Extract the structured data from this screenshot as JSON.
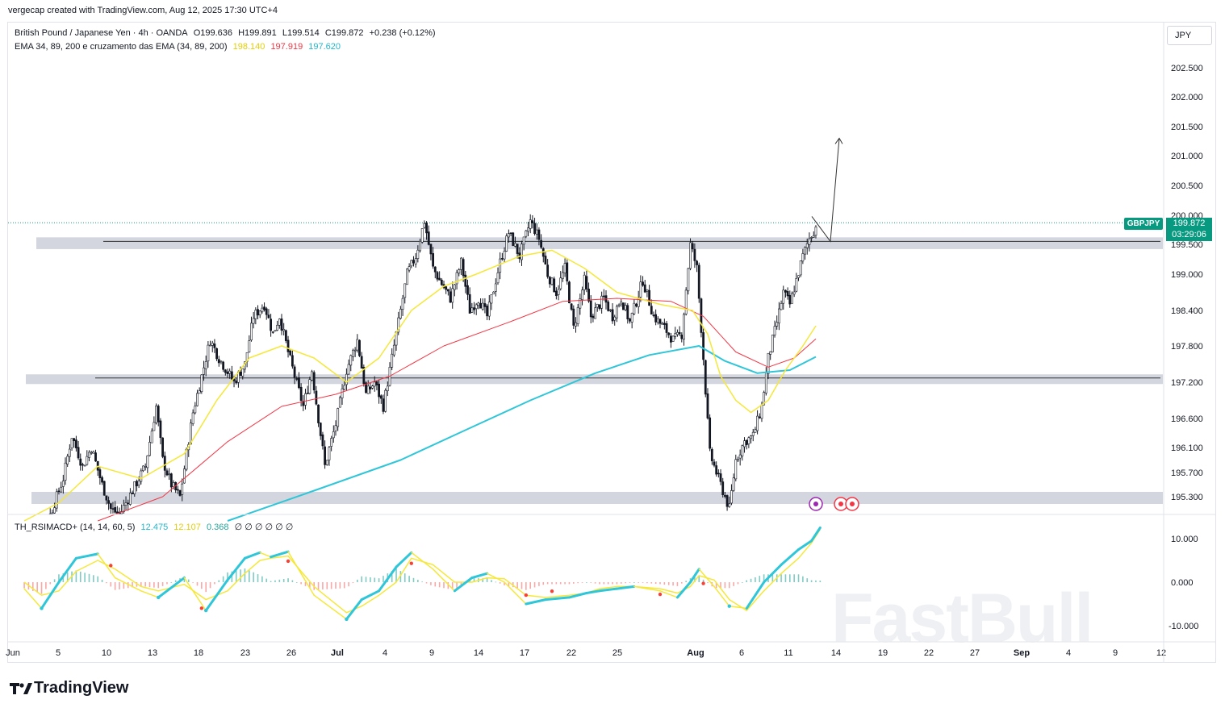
{
  "header_note": "vergecap created with TradingView.com, Aug 12, 2025 17:30 UTC+4",
  "legend": {
    "symbol": "British Pound / Japanese Yen · 4h · OANDA",
    "o": "O199.636",
    "h": "H199.891",
    "l": "L199.514",
    "c": "C199.872",
    "chg": "+0.238 (+0.12%)",
    "ema_label": "EMA 34, 89, 200 e cruzamento das EMA (34, 89, 200)",
    "ema_values": [
      {
        "value": "198.140",
        "color": "#f5e83a"
      },
      {
        "value": "197.919",
        "color": "#f23645"
      },
      {
        "value": "197.620",
        "color": "#2ec6d8"
      }
    ]
  },
  "indicator_legend": {
    "label": "TH_RSIMACD+ (14, 14, 60, 5)",
    "values": [
      {
        "value": "12.475",
        "color": "#2ec6d8"
      },
      {
        "value": "12.107",
        "color": "#f5e83a"
      },
      {
        "value": "0.368",
        "color": "#26a69a"
      }
    ],
    "extras": "∅ ∅ ∅ ∅ ∅ ∅"
  },
  "currency": "JPY",
  "last_price": {
    "symbol": "GBPJPY",
    "price": "199.872",
    "countdown": "03:29:06"
  },
  "watermark": "FastBull",
  "brand": "TradingView",
  "chart_data": {
    "type": "candlestick",
    "price_axis": {
      "ticks": [
        202.5,
        202.0,
        201.5,
        201.0,
        200.5,
        200.0,
        199.5,
        199.0,
        198.4,
        197.8,
        197.2,
        196.6,
        196.1,
        195.7,
        195.3
      ],
      "labels": [
        "202.500",
        "202.000",
        "201.500",
        "201.000",
        "200.500",
        "200.000",
        "199.500",
        "199.000",
        "198.400",
        "197.800",
        "197.200",
        "196.600",
        "196.100",
        "195.700",
        "195.300"
      ]
    },
    "x_ticks": [
      "Jun",
      "5",
      "10",
      "13",
      "18",
      "23",
      "26",
      "Jul",
      "4",
      "9",
      "14",
      "17",
      "22",
      "25",
      "Aug",
      "6",
      "11",
      "14",
      "19",
      "22",
      "27",
      "Sep",
      "4",
      "9",
      "12"
    ],
    "bold_x_ticks": [
      "Jul",
      "Aug",
      "Sep"
    ],
    "support_resistance_zones": [
      {
        "from": 199.42,
        "to": 199.62
      },
      {
        "from": 197.17,
        "to": 197.33
      },
      {
        "from": 195.18,
        "to": 195.38
      }
    ],
    "horizontal_lines": [
      199.55,
      197.27
    ],
    "projection_arrow": {
      "points": [
        [
          199.98,
          0
        ],
        [
          199.55,
          1
        ],
        [
          201.3,
          2
        ]
      ]
    },
    "ema_labels": [
      "EMA 34",
      "EMA 89",
      "EMA 200"
    ],
    "osc_axis": {
      "ticks": [
        10,
        0,
        -10
      ],
      "labels": [
        "10.000",
        "0.000",
        "-10.000"
      ]
    },
    "price_path": [
      [
        6,
        194.8
      ],
      [
        12,
        194.6
      ],
      [
        18,
        195.0
      ],
      [
        24,
        195.6
      ],
      [
        28,
        196.3
      ],
      [
        33,
        195.8
      ],
      [
        37,
        196.1
      ],
      [
        42,
        195.5
      ],
      [
        46,
        195.1
      ],
      [
        50,
        195.0
      ],
      [
        56,
        195.4
      ],
      [
        62,
        195.8
      ],
      [
        67,
        196.8
      ],
      [
        70,
        195.9
      ],
      [
        74,
        195.5
      ],
      [
        78,
        195.3
      ],
      [
        84,
        196.7
      ],
      [
        92,
        197.9
      ],
      [
        96,
        197.6
      ],
      [
        103,
        197.2
      ],
      [
        108,
        197.5
      ],
      [
        112,
        198.3
      ],
      [
        117,
        198.5
      ],
      [
        121,
        198.0
      ],
      [
        124,
        198.3
      ],
      [
        128,
        197.7
      ],
      [
        131,
        197.3
      ],
      [
        135,
        196.8
      ],
      [
        139,
        197.4
      ],
      [
        145,
        195.8
      ],
      [
        150,
        196.5
      ],
      [
        155,
        197.4
      ],
      [
        160,
        197.9
      ],
      [
        164,
        197.0
      ],
      [
        168,
        197.2
      ],
      [
        172,
        196.8
      ],
      [
        178,
        198.0
      ],
      [
        183,
        199.0
      ],
      [
        187,
        199.3
      ],
      [
        191,
        199.9
      ],
      [
        195,
        199.1
      ],
      [
        198,
        198.9
      ],
      [
        203,
        198.6
      ],
      [
        208,
        199.2
      ],
      [
        212,
        198.4
      ],
      [
        216,
        198.6
      ],
      [
        220,
        198.3
      ],
      [
        226,
        199.2
      ],
      [
        230,
        199.7
      ],
      [
        235,
        199.3
      ],
      [
        240,
        199.9
      ],
      [
        244,
        199.6
      ],
      [
        248,
        199.0
      ],
      [
        252,
        198.7
      ],
      [
        256,
        199.1
      ],
      [
        260,
        198.1
      ],
      [
        265,
        198.9
      ],
      [
        268,
        198.3
      ],
      [
        274,
        198.6
      ],
      [
        278,
        198.3
      ],
      [
        282,
        198.6
      ],
      [
        286,
        198.2
      ],
      [
        292,
        198.9
      ],
      [
        297,
        198.3
      ],
      [
        302,
        198.1
      ],
      [
        306,
        197.9
      ],
      [
        310,
        198.0
      ],
      [
        314,
        199.5
      ],
      [
        317,
        199.1
      ],
      [
        320,
        197.6
      ],
      [
        323,
        196.0
      ],
      [
        326,
        195.7
      ],
      [
        329,
        195.4
      ],
      [
        332,
        195.1
      ],
      [
        335,
        195.9
      ],
      [
        339,
        196.2
      ],
      [
        343,
        196.3
      ],
      [
        347,
        196.8
      ],
      [
        350,
        197.6
      ],
      [
        354,
        198.2
      ],
      [
        357,
        198.7
      ],
      [
        360,
        198.5
      ],
      [
        363,
        198.9
      ],
      [
        366,
        199.3
      ],
      [
        369,
        199.6
      ],
      [
        372,
        199.8
      ]
    ],
    "ema34": [
      [
        6,
        194.9
      ],
      [
        22,
        195.2
      ],
      [
        40,
        195.8
      ],
      [
        60,
        195.6
      ],
      [
        80,
        196.0
      ],
      [
        95,
        196.9
      ],
      [
        110,
        197.6
      ],
      [
        125,
        197.8
      ],
      [
        140,
        197.6
      ],
      [
        155,
        197.2
      ],
      [
        170,
        197.6
      ],
      [
        185,
        198.4
      ],
      [
        200,
        198.8
      ],
      [
        215,
        199.0
      ],
      [
        235,
        199.3
      ],
      [
        250,
        199.4
      ],
      [
        265,
        199.1
      ],
      [
        280,
        198.7
      ],
      [
        300,
        198.5
      ],
      [
        315,
        198.4
      ],
      [
        322,
        198.0
      ],
      [
        328,
        197.3
      ],
      [
        335,
        196.9
      ],
      [
        342,
        196.7
      ],
      [
        350,
        196.9
      ],
      [
        358,
        197.4
      ],
      [
        366,
        197.8
      ],
      [
        372,
        198.14
      ]
    ],
    "ema89": [
      [
        6,
        194.7
      ],
      [
        40,
        194.9
      ],
      [
        70,
        195.3
      ],
      [
        100,
        196.2
      ],
      [
        125,
        196.8
      ],
      [
        150,
        197.0
      ],
      [
        175,
        197.3
      ],
      [
        200,
        197.8
      ],
      [
        230,
        198.2
      ],
      [
        255,
        198.55
      ],
      [
        280,
        198.6
      ],
      [
        305,
        198.55
      ],
      [
        320,
        198.3
      ],
      [
        335,
        197.7
      ],
      [
        350,
        197.45
      ],
      [
        362,
        197.6
      ],
      [
        372,
        197.92
      ]
    ],
    "ema200": [
      [
        60,
        194.5
      ],
      [
        100,
        194.9
      ],
      [
        140,
        195.4
      ],
      [
        180,
        195.9
      ],
      [
        210,
        196.4
      ],
      [
        240,
        196.9
      ],
      [
        270,
        197.35
      ],
      [
        295,
        197.65
      ],
      [
        318,
        197.8
      ],
      [
        330,
        197.55
      ],
      [
        345,
        197.35
      ],
      [
        360,
        197.4
      ],
      [
        372,
        197.62
      ]
    ],
    "osc_fast": [
      [
        6,
        -1.5
      ],
      [
        14,
        -6
      ],
      [
        22,
        0
      ],
      [
        30,
        5.5
      ],
      [
        40,
        6.5
      ],
      [
        48,
        1
      ],
      [
        60,
        -2
      ],
      [
        68,
        -3.5
      ],
      [
        80,
        1
      ],
      [
        90,
        -6.5
      ],
      [
        100,
        0.5
      ],
      [
        108,
        5.5
      ],
      [
        115,
        6.8
      ],
      [
        120,
        5.8
      ],
      [
        128,
        7
      ],
      [
        140,
        -3
      ],
      [
        155,
        -8.5
      ],
      [
        162,
        -4
      ],
      [
        170,
        -2
      ],
      [
        178,
        3.5
      ],
      [
        185,
        6.8
      ],
      [
        195,
        3
      ],
      [
        205,
        -2
      ],
      [
        213,
        1
      ],
      [
        220,
        2
      ],
      [
        228,
        0
      ],
      [
        238,
        -5
      ],
      [
        247,
        -4
      ],
      [
        258,
        -3.5
      ],
      [
        266,
        -2.5
      ],
      [
        272,
        -2
      ],
      [
        280,
        -1.5
      ],
      [
        288,
        -1
      ],
      [
        300,
        -2
      ],
      [
        308,
        -3.5
      ],
      [
        314,
        0
      ],
      [
        318,
        3
      ],
      [
        325,
        -1
      ],
      [
        332,
        -5.5
      ],
      [
        340,
        -6
      ],
      [
        348,
        0
      ],
      [
        356,
        4
      ],
      [
        364,
        7.5
      ],
      [
        370,
        9.5
      ],
      [
        374,
        12.5
      ]
    ],
    "osc_slow": [
      [
        6,
        0
      ],
      [
        14,
        -3
      ],
      [
        22,
        -2
      ],
      [
        30,
        2.5
      ],
      [
        40,
        5
      ],
      [
        48,
        3
      ],
      [
        60,
        -1
      ],
      [
        68,
        -2
      ],
      [
        80,
        -0.5
      ],
      [
        90,
        -4
      ],
      [
        100,
        -2
      ],
      [
        108,
        2
      ],
      [
        115,
        5
      ],
      [
        120,
        5.5
      ],
      [
        128,
        6
      ],
      [
        140,
        -1
      ],
      [
        155,
        -7
      ],
      [
        162,
        -5.5
      ],
      [
        170,
        -3
      ],
      [
        178,
        0
      ],
      [
        185,
        5.5
      ],
      [
        195,
        4
      ],
      [
        205,
        0
      ],
      [
        213,
        0
      ],
      [
        220,
        1
      ],
      [
        228,
        0.8
      ],
      [
        238,
        -3
      ],
      [
        247,
        -3.5
      ],
      [
        258,
        -3
      ],
      [
        266,
        -2.5
      ],
      [
        272,
        -1.5
      ],
      [
        280,
        -1
      ],
      [
        288,
        -1
      ],
      [
        300,
        -1.5
      ],
      [
        308,
        -2.5
      ],
      [
        314,
        -1
      ],
      [
        318,
        1.5
      ],
      [
        325,
        0.5
      ],
      [
        332,
        -4
      ],
      [
        340,
        -6.5
      ],
      [
        348,
        -2
      ],
      [
        356,
        2
      ],
      [
        364,
        5.5
      ],
      [
        370,
        9
      ],
      [
        374,
        12.1
      ]
    ]
  }
}
